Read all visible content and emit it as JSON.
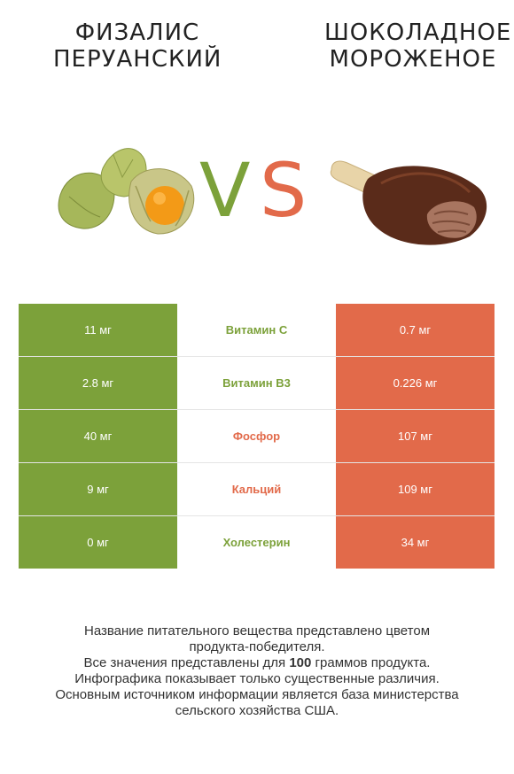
{
  "header": {
    "left_title_line1": "ФИЗАЛИС",
    "left_title_line2": "ПЕРУАНСКИЙ",
    "right_title_line1": "ШОКОЛАДНОЕ",
    "right_title_line2": "МОРОЖЕНОЕ",
    "vs_v": "V",
    "vs_s": "S"
  },
  "colors": {
    "left": "#7ca13a",
    "right": "#e26a4a"
  },
  "rows": [
    {
      "left": "11 мг",
      "name": "Витамин C",
      "right": "0.7 мг",
      "winner": "left"
    },
    {
      "left": "2.8 мг",
      "name": "Витамин B3",
      "right": "0.226 мг",
      "winner": "left"
    },
    {
      "left": "40 мг",
      "name": "Фосфор",
      "right": "107 мг",
      "winner": "right"
    },
    {
      "left": "9 мг",
      "name": "Кальций",
      "right": "109 мг",
      "winner": "right"
    },
    {
      "left": "0 мг",
      "name": "Холестерин",
      "right": "34 мг",
      "winner": "left"
    }
  ],
  "notes": {
    "line1": "Название питательного вещества представлено цветом",
    "line2": "продукта-победителя.",
    "line3_pre": "Все значения представлены для ",
    "line3_bold": "100",
    "line3_post": " граммов продукта.",
    "line4": "Инфографика показывает только существенные различия.",
    "line5": "Основным источником информации является база министерства",
    "line6": "сельского хозяйства США."
  }
}
